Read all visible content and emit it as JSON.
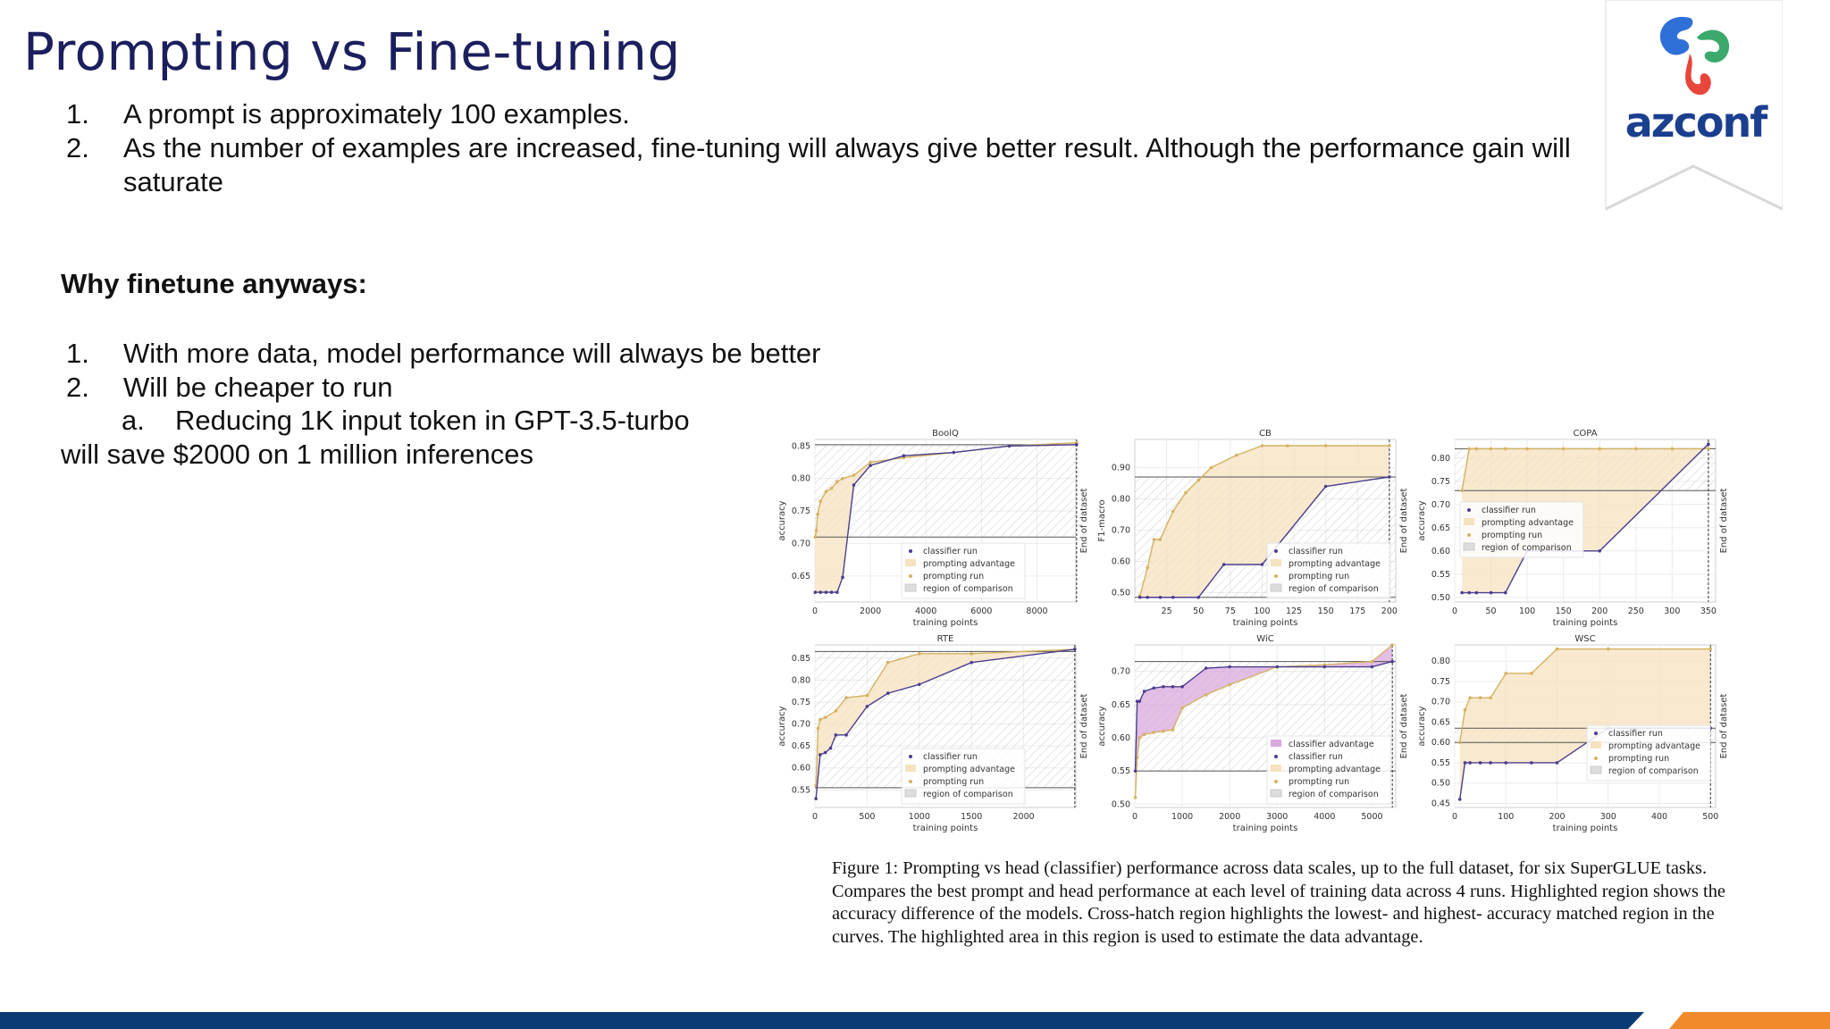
{
  "title": "Prompting vs Fine-tuning",
  "top_list": [
    {
      "num": "1.",
      "text": "A prompt is approximately 100 examples."
    },
    {
      "num": "2.",
      "text": "As the number of examples are increased, fine-tuning will always give better result. Although the performance gain will saturate"
    }
  ],
  "why_heading": "Why finetune anyways:",
  "why_list": [
    {
      "num": "1.",
      "text": "With more data, model performance will always be better"
    },
    {
      "num": "2.",
      "text": "Will be cheaper to run"
    }
  ],
  "sub_item": {
    "letter": "a.",
    "text": "Reducing 1K input token in GPT-3.5-turbo"
  },
  "continuation": "will save $2000 on 1 million inferences",
  "logo": {
    "text": "azconf",
    "colors": {
      "blue": "#2f6fd8",
      "green": "#3aa96b",
      "red": "#e8453c",
      "text": "#1b3f8f"
    }
  },
  "figure_caption": "Figure 1: Prompting vs head (classifier) performance across data scales, up to the full dataset, for six SuperGLUE tasks. Compares the best prompt and head performance at each level of training data across 4 runs. Highlighted region shows the accuracy difference of the models. Cross-hatch region highlights the lowest- and highest- accuracy matched region in the curves. The highlighted area in this region is used to estimate the data advantage.",
  "colors": {
    "title": "#1b1f5e",
    "classifier": "#4b3d8f",
    "prompting": "#d4b262",
    "advantage_fill": "#f6e2bf",
    "classifier_fill": "#d9a8dc",
    "footer_blue": "#0b3b75",
    "footer_orange": "#f08a2c"
  },
  "chart_data": [
    {
      "type": "line",
      "title": "BoolQ",
      "xlabel": "training points",
      "ylabel": "accuracy",
      "xlim": [
        0,
        9400
      ],
      "ylim": [
        0.61,
        0.86
      ],
      "xticks": [
        0,
        2000,
        4000,
        6000,
        8000
      ],
      "yticks": [
        0.65,
        0.7,
        0.75,
        0.8,
        0.85
      ],
      "end_label": "End of dataset",
      "end_x": 9427,
      "legend": [
        "classifier run",
        "prompting advantage",
        "prompting run",
        "region of comparison"
      ],
      "series": [
        {
          "name": "classifier run",
          "x": [
            10,
            200,
            400,
            600,
            800,
            1000,
            1400,
            2000,
            3200,
            5000,
            7000,
            9427
          ],
          "y": [
            0.625,
            0.625,
            0.625,
            0.625,
            0.625,
            0.648,
            0.79,
            0.82,
            0.835,
            0.84,
            0.85,
            0.852
          ]
        },
        {
          "name": "prompting run",
          "x": [
            10,
            50,
            100,
            200,
            400,
            600,
            800,
            1000,
            1400,
            2000,
            3200,
            5000,
            7000,
            9427
          ],
          "y": [
            0.71,
            0.72,
            0.745,
            0.765,
            0.78,
            0.785,
            0.795,
            0.8,
            0.805,
            0.825,
            0.832,
            0.84,
            0.85,
            0.855
          ]
        }
      ],
      "hlines": [
        0.852,
        0.71
      ],
      "legend_loc": "lower-center"
    },
    {
      "type": "line",
      "title": "CB",
      "xlabel": "training points",
      "ylabel": "F1-macro",
      "xlim": [
        0,
        205
      ],
      "ylim": [
        0.47,
        0.99
      ],
      "xticks": [
        25,
        50,
        75,
        100,
        125,
        150,
        175,
        200
      ],
      "yticks": [
        0.5,
        0.6,
        0.7,
        0.8,
        0.9
      ],
      "end_label": "End of dataset",
      "end_x": 200,
      "legend": [
        "classifier run",
        "prompting advantage",
        "prompting run",
        "region of comparison"
      ],
      "series": [
        {
          "name": "classifier run",
          "x": [
            4,
            10,
            20,
            30,
            50,
            70,
            100,
            150,
            200
          ],
          "y": [
            0.485,
            0.485,
            0.485,
            0.485,
            0.485,
            0.59,
            0.59,
            0.84,
            0.87
          ]
        },
        {
          "name": "prompting run",
          "x": [
            4,
            10,
            15,
            20,
            30,
            40,
            50,
            60,
            80,
            100,
            120,
            150,
            200
          ],
          "y": [
            0.49,
            0.58,
            0.67,
            0.67,
            0.76,
            0.82,
            0.86,
            0.9,
            0.94,
            0.97,
            0.97,
            0.97,
            0.97
          ]
        }
      ],
      "hlines": [
        0.87,
        0.485
      ],
      "legend_loc": "lower-right"
    },
    {
      "type": "line",
      "title": "COPA",
      "xlabel": "training points",
      "ylabel": "accuracy",
      "xlim": [
        0,
        360
      ],
      "ylim": [
        0.49,
        0.84
      ],
      "xticks": [
        0,
        50,
        100,
        150,
        200,
        250,
        300,
        350
      ],
      "yticks": [
        0.5,
        0.55,
        0.6,
        0.65,
        0.7,
        0.75,
        0.8
      ],
      "end_label": "End of dataset",
      "end_x": 350,
      "legend": [
        "classifier run",
        "prompting advantage",
        "prompting run",
        "region of comparison"
      ],
      "series": [
        {
          "name": "classifier run",
          "x": [
            10,
            20,
            30,
            50,
            70,
            100,
            150,
            200,
            350
          ],
          "y": [
            0.51,
            0.51,
            0.51,
            0.51,
            0.51,
            0.6,
            0.6,
            0.6,
            0.83
          ]
        },
        {
          "name": "prompting run",
          "x": [
            10,
            20,
            30,
            50,
            70,
            100,
            150,
            200,
            250,
            300,
            350
          ],
          "y": [
            0.73,
            0.82,
            0.82,
            0.82,
            0.82,
            0.82,
            0.82,
            0.82,
            0.82,
            0.82,
            0.82
          ]
        }
      ],
      "hlines": [
        0.82,
        0.73
      ],
      "legend_loc": "center-left"
    },
    {
      "type": "line",
      "title": "RTE",
      "xlabel": "training points",
      "ylabel": "accuracy",
      "xlim": [
        0,
        2500
      ],
      "ylim": [
        0.51,
        0.88
      ],
      "xticks": [
        0,
        500,
        1000,
        1500,
        2000
      ],
      "yticks": [
        0.55,
        0.6,
        0.65,
        0.7,
        0.75,
        0.8,
        0.85
      ],
      "end_label": "End of dataset",
      "end_x": 2490,
      "legend": [
        "classifier run",
        "prompting advantage",
        "prompting run",
        "region of comparison"
      ],
      "series": [
        {
          "name": "classifier run",
          "x": [
            10,
            50,
            100,
            150,
            200,
            300,
            500,
            700,
            1000,
            1500,
            2490
          ],
          "y": [
            0.53,
            0.63,
            0.635,
            0.645,
            0.675,
            0.675,
            0.74,
            0.77,
            0.79,
            0.84,
            0.87
          ]
        },
        {
          "name": "prompting run",
          "x": [
            10,
            30,
            50,
            100,
            200,
            300,
            500,
            700,
            1000,
            1500,
            2490
          ],
          "y": [
            0.56,
            0.69,
            0.71,
            0.715,
            0.73,
            0.76,
            0.765,
            0.84,
            0.86,
            0.86,
            0.87
          ]
        }
      ],
      "hlines": [
        0.865,
        0.555
      ],
      "legend_loc": "lower-center"
    },
    {
      "type": "line",
      "title": "WiC",
      "xlabel": "training points",
      "ylabel": "accuracy",
      "xlim": [
        0,
        5500
      ],
      "ylim": [
        0.495,
        0.74
      ],
      "xticks": [
        0,
        1000,
        2000,
        3000,
        4000,
        5000
      ],
      "yticks": [
        0.5,
        0.55,
        0.6,
        0.65,
        0.7
      ],
      "end_label": "End of dataset",
      "end_x": 5428,
      "legend": [
        "classifier advantage",
        "classifier run",
        "prompting advantage",
        "prompting run",
        "region of comparison"
      ],
      "series": [
        {
          "name": "classifier run",
          "x": [
            10,
            50,
            100,
            200,
            400,
            600,
            800,
            1000,
            1500,
            2000,
            3000,
            4000,
            5000,
            5428
          ],
          "y": [
            0.55,
            0.655,
            0.655,
            0.67,
            0.675,
            0.677,
            0.677,
            0.677,
            0.705,
            0.707,
            0.707,
            0.707,
            0.707,
            0.715
          ]
        },
        {
          "name": "prompting run",
          "x": [
            10,
            50,
            100,
            200,
            400,
            600,
            800,
            1000,
            1500,
            2000,
            3000,
            4000,
            5000,
            5428
          ],
          "y": [
            0.51,
            0.57,
            0.6,
            0.605,
            0.608,
            0.61,
            0.612,
            0.645,
            0.665,
            0.68,
            0.707,
            0.71,
            0.715,
            0.74
          ]
        }
      ],
      "hlines": [
        0.715,
        0.55
      ],
      "legend_loc": "lower-right"
    },
    {
      "type": "line",
      "title": "WSC",
      "xlabel": "training points",
      "ylabel": "accuracy",
      "xlim": [
        0,
        510
      ],
      "ylim": [
        0.44,
        0.84
      ],
      "xticks": [
        0,
        100,
        200,
        300,
        400,
        500
      ],
      "yticks": [
        0.45,
        0.5,
        0.55,
        0.6,
        0.65,
        0.7,
        0.75,
        0.8
      ],
      "end_label": "End of dataset",
      "end_x": 500,
      "legend": [
        "classifier run",
        "prompting advantage",
        "prompting run",
        "region of comparison"
      ],
      "series": [
        {
          "name": "classifier run",
          "x": [
            10,
            20,
            30,
            50,
            70,
            100,
            150,
            200,
            300,
            500
          ],
          "y": [
            0.46,
            0.55,
            0.55,
            0.55,
            0.55,
            0.55,
            0.55,
            0.55,
            0.635,
            0.635
          ]
        },
        {
          "name": "prompting run",
          "x": [
            10,
            20,
            30,
            50,
            70,
            100,
            150,
            200,
            300,
            500
          ],
          "y": [
            0.6,
            0.68,
            0.71,
            0.71,
            0.71,
            0.77,
            0.77,
            0.83,
            0.83,
            0.83
          ]
        }
      ],
      "hlines": [
        0.635,
        0.6
      ],
      "legend_loc": "center-right"
    }
  ]
}
